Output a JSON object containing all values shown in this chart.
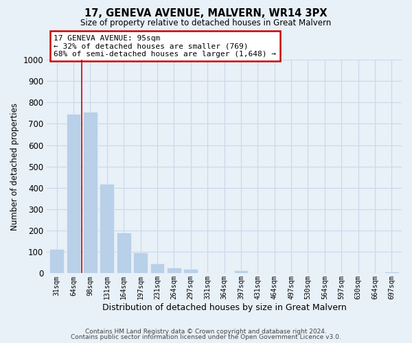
{
  "title": "17, GENEVA AVENUE, MALVERN, WR14 3PX",
  "subtitle": "Size of property relative to detached houses in Great Malvern",
  "xlabel": "Distribution of detached houses by size in Great Malvern",
  "ylabel": "Number of detached properties",
  "bar_labels": [
    "31sqm",
    "64sqm",
    "98sqm",
    "131sqm",
    "164sqm",
    "197sqm",
    "231sqm",
    "264sqm",
    "297sqm",
    "331sqm",
    "364sqm",
    "397sqm",
    "431sqm",
    "464sqm",
    "497sqm",
    "530sqm",
    "564sqm",
    "597sqm",
    "630sqm",
    "664sqm",
    "697sqm"
  ],
  "bar_values": [
    115,
    745,
    755,
    420,
    190,
    97,
    47,
    27,
    20,
    0,
    0,
    15,
    0,
    0,
    0,
    0,
    0,
    0,
    0,
    0,
    7
  ],
  "bar_color": "#b8d0e8",
  "highlight_bar_index": 2,
  "highlight_line_color": "#cc0000",
  "ylim": [
    0,
    1000
  ],
  "yticks": [
    0,
    100,
    200,
    300,
    400,
    500,
    600,
    700,
    800,
    900,
    1000
  ],
  "annotation_line1": "17 GENEVA AVENUE: 95sqm",
  "annotation_line2": "← 32% of detached houses are smaller (769)",
  "annotation_line3": "68% of semi-detached houses are larger (1,648) →",
  "footer_line1": "Contains HM Land Registry data © Crown copyright and database right 2024.",
  "footer_line2": "Contains public sector information licensed under the Open Government Licence v3.0.",
  "grid_color": "#c8d8e8",
  "background_color": "#e8f0f8"
}
